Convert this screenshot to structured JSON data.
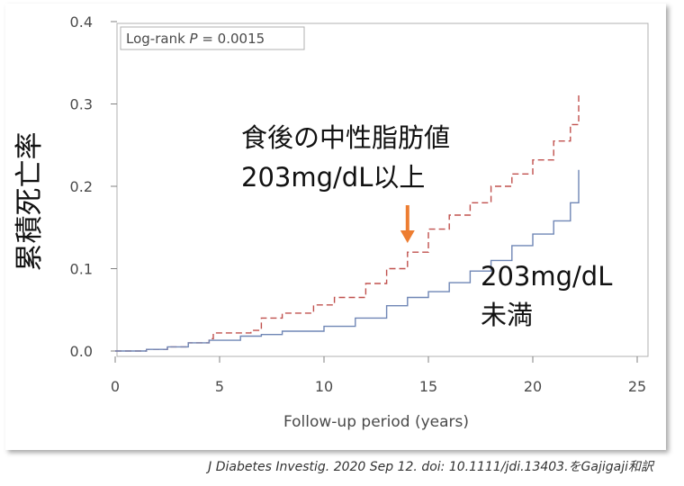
{
  "chart_data": {
    "type": "line",
    "title": "",
    "xlabel": "Follow-up period (years)",
    "ylabel": "累積死亡率",
    "xlim": [
      0,
      25
    ],
    "ylim": [
      0,
      0.4
    ],
    "xticks": [
      "0",
      "5",
      "10",
      "15",
      "20",
      "25"
    ],
    "yticks": [
      "0.0",
      "0.1",
      "0.2",
      "0.3",
      "0.4"
    ],
    "grid": false,
    "legend_box": {
      "text_prefix": "Log-rank ",
      "text_var": "P",
      "text_suffix": " = 0.0015",
      "placement": "top-left"
    },
    "series": [
      {
        "name": "食後の中性脂肪値 203mg/dL以上",
        "color": "#c0504d",
        "style": "dashed",
        "x": [
          0,
          1.5,
          2.5,
          3.5,
          4.5,
          4.7,
          6.5,
          7.0,
          8.0,
          9.5,
          10.5,
          12.0,
          13.0,
          14.0,
          15.0,
          16.0,
          17.0,
          18.0,
          19.0,
          20.0,
          21.0,
          21.8,
          22.2
        ],
        "y": [
          0,
          0.002,
          0.005,
          0.01,
          0.015,
          0.022,
          0.025,
          0.04,
          0.046,
          0.056,
          0.065,
          0.082,
          0.1,
          0.12,
          0.148,
          0.165,
          0.18,
          0.2,
          0.215,
          0.232,
          0.255,
          0.275,
          0.312
        ]
      },
      {
        "name": "203mg/dL 未満",
        "color": "#6f86b5",
        "style": "solid",
        "x": [
          0,
          1.5,
          2.5,
          3.5,
          4.5,
          6.0,
          7.0,
          8.0,
          10.0,
          11.5,
          13.0,
          14.0,
          15.0,
          16.0,
          17.0,
          18.0,
          19.0,
          20.0,
          21.0,
          21.8,
          22.2
        ],
        "y": [
          0,
          0.002,
          0.005,
          0.01,
          0.013,
          0.018,
          0.02,
          0.024,
          0.03,
          0.04,
          0.055,
          0.065,
          0.072,
          0.083,
          0.097,
          0.11,
          0.128,
          0.142,
          0.158,
          0.18,
          0.22
        ]
      }
    ],
    "annotations": {
      "high_label_line1": "食後の中性脂肪値",
      "high_label_line2": "203mg/dL以上",
      "low_label_line1": "203mg/dL",
      "low_label_line2": "未満",
      "arrow_color": "#ed7d31",
      "arrow_x": 14.0
    }
  },
  "citation": "J Diabetes Investig. 2020 Sep 12. doi: 10.1111/jdi.13403.をGajigaji和訳"
}
